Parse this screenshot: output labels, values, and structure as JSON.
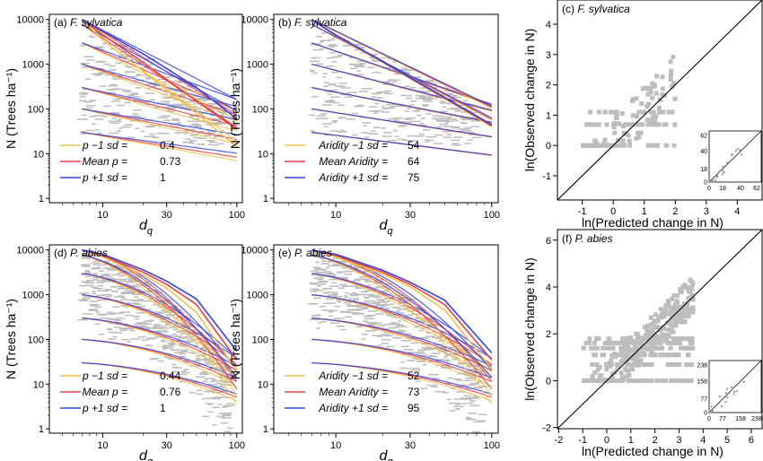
{
  "colors": {
    "low": "#f2c24b",
    "mean": "#e8404a",
    "high": "#3344dd",
    "overlap": "#7a3d8a",
    "points": "#bdbdbd",
    "axis": "#000000"
  },
  "chart_data": [
    {
      "panel": "a",
      "type": "line",
      "title_prefix": "(a) ",
      "title_species": "F. sylvatica",
      "xlabel_main": "d",
      "xlabel_sub": "q",
      "ylabel": "N (Trees ha⁻¹)",
      "x_scale": "log",
      "y_scale": "log",
      "xlim": [
        4,
        110
      ],
      "ylim": [
        0.8,
        13000
      ],
      "x_ticks": [
        10,
        30,
        100
      ],
      "y_ticks": [
        1,
        10,
        100,
        1000,
        10000
      ],
      "legend": [
        {
          "label": "p −1 sd =",
          "value": "0.4",
          "color": "low"
        },
        {
          "label": "Mean p =",
          "value": "0.73",
          "color": "mean"
        },
        {
          "label": "p +1 sd =",
          "value": "1",
          "color": "high"
        }
      ],
      "series": [
        {
          "name": "p −1 sd",
          "x": [
            7,
            10,
            20,
            30,
            50,
            100
          ],
          "y": [
            10000,
            3500,
            700,
            260,
            80,
            14
          ]
        },
        {
          "name": "Mean p",
          "x": [
            7,
            10,
            20,
            30,
            50,
            100
          ],
          "y": [
            10000,
            4500,
            1100,
            450,
            150,
            35
          ]
        },
        {
          "name": "p +1 sd",
          "x": [
            7,
            10,
            20,
            30,
            50,
            100
          ],
          "y": [
            10000,
            5500,
            1700,
            800,
            300,
            60
          ]
        }
      ]
    },
    {
      "panel": "b",
      "type": "line",
      "title_prefix": "(b) ",
      "title_species": "F. sylvatica",
      "xlabel_main": "d",
      "xlabel_sub": "q",
      "ylabel": "N (Trees ha⁻¹)",
      "x_scale": "log",
      "y_scale": "log",
      "xlim": [
        4,
        110
      ],
      "ylim": [
        0.8,
        13000
      ],
      "x_ticks": [
        10,
        30,
        100
      ],
      "y_ticks": [
        1,
        10,
        100,
        1000,
        10000
      ],
      "legend": [
        {
          "label": "Aridity −1 sd =",
          "value": "54",
          "color": "low"
        },
        {
          "label": "Mean Aridity =",
          "value": "64",
          "color": "mean"
        },
        {
          "label": "Aridity +1 sd =",
          "value": "75",
          "color": "high"
        }
      ],
      "series": [
        {
          "name": "Aridity −1 sd",
          "x": [
            7,
            10,
            20,
            30,
            50,
            100
          ],
          "y": [
            10000,
            4300,
            1100,
            480,
            170,
            40
          ]
        },
        {
          "name": "Mean Aridity",
          "x": [
            7,
            10,
            20,
            30,
            50,
            100
          ],
          "y": [
            10000,
            4400,
            1120,
            490,
            175,
            42
          ]
        },
        {
          "name": "Aridity +1 sd",
          "x": [
            7,
            10,
            20,
            30,
            50,
            100
          ],
          "y": [
            10000,
            4500,
            1150,
            500,
            180,
            44
          ]
        }
      ]
    },
    {
      "panel": "c",
      "type": "scatter",
      "title_prefix": "(c) ",
      "title_species": "F. sylvatica",
      "xlabel": "ln(Predicted change in N)",
      "ylabel": "ln(Observed change in N)",
      "xlim": [
        -1.8,
        4.8
      ],
      "ylim": [
        -1.8,
        4.8
      ],
      "x_ticks": [
        -1,
        0,
        1,
        2,
        3,
        4
      ],
      "y_ticks": [
        -1,
        0,
        1,
        2,
        3,
        4
      ],
      "inset_ticks": [
        0,
        18,
        40,
        62
      ]
    },
    {
      "panel": "d",
      "type": "line",
      "title_prefix": "(d) ",
      "title_species": "P. abies",
      "xlabel_main": "d",
      "xlabel_sub": "q",
      "ylabel": "N (Trees ha⁻¹)",
      "x_scale": "log",
      "y_scale": "log",
      "xlim": [
        4,
        110
      ],
      "ylim": [
        0.8,
        13000
      ],
      "x_ticks": [
        10,
        30,
        100
      ],
      "y_ticks": [
        1,
        10,
        100,
        1000,
        10000
      ],
      "legend": [
        {
          "label": "p −1 sd =",
          "value": "0.44",
          "color": "low"
        },
        {
          "label": "Mean p =",
          "value": "0.76",
          "color": "mean"
        },
        {
          "label": "p +1 sd =",
          "value": "1",
          "color": "high"
        }
      ],
      "series": [
        {
          "name": "p −1 sd",
          "x": [
            7,
            10,
            20,
            30,
            50,
            100
          ],
          "y": [
            10000,
            7000,
            2800,
            1400,
            400,
            20
          ]
        },
        {
          "name": "Mean p",
          "x": [
            7,
            10,
            20,
            30,
            50,
            100
          ],
          "y": [
            10000,
            7500,
            3200,
            1700,
            600,
            35
          ]
        },
        {
          "name": "p +1 sd",
          "x": [
            7,
            10,
            20,
            30,
            50,
            100
          ],
          "y": [
            10000,
            8000,
            3600,
            2000,
            800,
            55
          ]
        }
      ]
    },
    {
      "panel": "e",
      "type": "line",
      "title_prefix": "(e) ",
      "title_species": "P. abies",
      "xlabel_main": "d",
      "xlabel_sub": "q",
      "ylabel": "N (Trees ha⁻¹)",
      "x_scale": "log",
      "y_scale": "log",
      "xlim": [
        4,
        110
      ],
      "ylim": [
        0.8,
        13000
      ],
      "x_ticks": [
        10,
        30,
        100
      ],
      "y_ticks": [
        1,
        10,
        100,
        1000,
        10000
      ],
      "legend": [
        {
          "label": "Aridity −1 sd =",
          "value": "52",
          "color": "low"
        },
        {
          "label": "Mean Aridity =",
          "value": "73",
          "color": "mean"
        },
        {
          "label": "Aridity +1 sd =",
          "value": "95",
          "color": "high"
        }
      ],
      "series": [
        {
          "name": "Aridity −1 sd",
          "x": [
            7,
            10,
            20,
            30,
            50,
            100
          ],
          "y": [
            10000,
            7000,
            2900,
            1500,
            450,
            22
          ]
        },
        {
          "name": "Mean Aridity",
          "x": [
            7,
            10,
            20,
            30,
            50,
            100
          ],
          "y": [
            10000,
            7500,
            3200,
            1700,
            600,
            35
          ]
        },
        {
          "name": "Aridity +1 sd",
          "x": [
            7,
            10,
            20,
            30,
            50,
            100
          ],
          "y": [
            10000,
            8000,
            3500,
            1900,
            750,
            50
          ]
        }
      ]
    },
    {
      "panel": "f",
      "type": "scatter",
      "title_prefix": "(f) ",
      "title_species": "P. abies",
      "xlabel": "ln(Predicted change in N)",
      "ylabel": "ln(Observed change in N)",
      "xlim": [
        -2.05,
        6.45
      ],
      "ylim": [
        -2.05,
        6.45
      ],
      "x_ticks": [
        -2,
        -1,
        0,
        1,
        2,
        3,
        4,
        5,
        6
      ],
      "y_ticks": [
        -2,
        0,
        2,
        4,
        6
      ],
      "inset_ticks": [
        0,
        77,
        158,
        238
      ]
    }
  ]
}
